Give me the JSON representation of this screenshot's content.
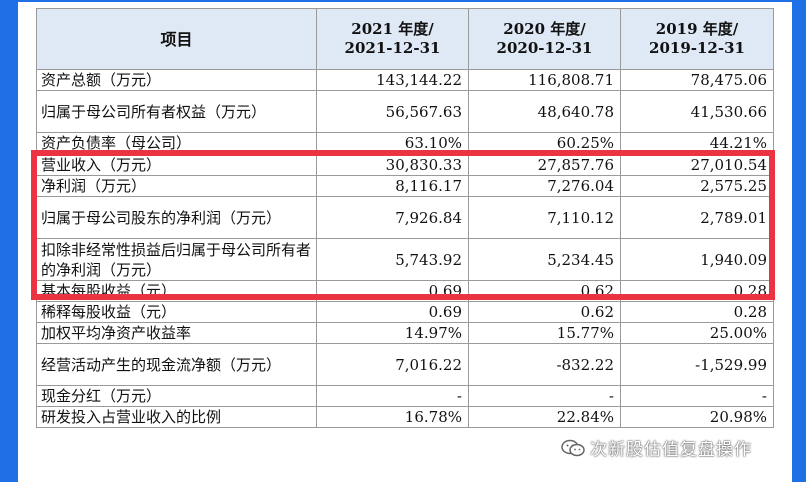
{
  "header": {
    "item": "项目",
    "col2021_line1": "2021 年度/",
    "col2021_line2": "2021-12-31",
    "col2020_line1": "2020 年度/",
    "col2020_line2": "2020-12-31",
    "col2019_line1": "2019 年度/",
    "col2019_line2": "2019-12-31"
  },
  "rows": [
    {
      "label": "资产总额（万元）",
      "v2021": "143,144.22",
      "v2020": "116,808.71",
      "v2019": "78,475.06"
    },
    {
      "label": "归属于母公司所有者权益（万元）",
      "v2021": "56,567.63",
      "v2020": "48,640.78",
      "v2019": "41,530.66"
    },
    {
      "label": "资产负债率（母公司）",
      "v2021": "63.10%",
      "v2020": "60.25%",
      "v2019": "44.21%"
    },
    {
      "label": "营业收入（万元）",
      "v2021": "30,830.33",
      "v2020": "27,857.76",
      "v2019": "27,010.54"
    },
    {
      "label": "净利润（万元）",
      "v2021": "8,116.17",
      "v2020": "7,276.04",
      "v2019": "2,575.25"
    },
    {
      "label": "归属于母公司股东的净利润（万元）",
      "v2021": "7,926.84",
      "v2020": "7,110.12",
      "v2019": "2,789.01"
    },
    {
      "label": "扣除非经常性损益后归属于母公司所有者的净利润（万元）",
      "v2021": "5,743.92",
      "v2020": "5,234.45",
      "v2019": "1,940.09"
    },
    {
      "label": "基本每股收益（元）",
      "v2021": "0.69",
      "v2020": "0.62",
      "v2019": "0.28"
    },
    {
      "label": "稀释每股收益（元）",
      "v2021": "0.69",
      "v2020": "0.62",
      "v2019": "0.28"
    },
    {
      "label": "加权平均净资产收益率",
      "v2021": "14.97%",
      "v2020": "15.77%",
      "v2019": "25.00%"
    },
    {
      "label": "经营活动产生的现金流净额（万元）",
      "v2021": "7,016.22",
      "v2020": "-832.22",
      "v2019": "-1,529.99"
    },
    {
      "label": "现金分红（万元）",
      "v2021": "-",
      "v2020": "-",
      "v2019": "-"
    },
    {
      "label": "研发投入占营业收入的比例",
      "v2021": "16.78%",
      "v2020": "22.84%",
      "v2019": "20.98%"
    }
  ],
  "watermark": {
    "text": "次新股估值复盘操作",
    "icon": "wechat-icon"
  },
  "colors": {
    "frame": "#1f6fe6",
    "highlight": "#ec3341",
    "header_bg": "#dfe8f5"
  }
}
